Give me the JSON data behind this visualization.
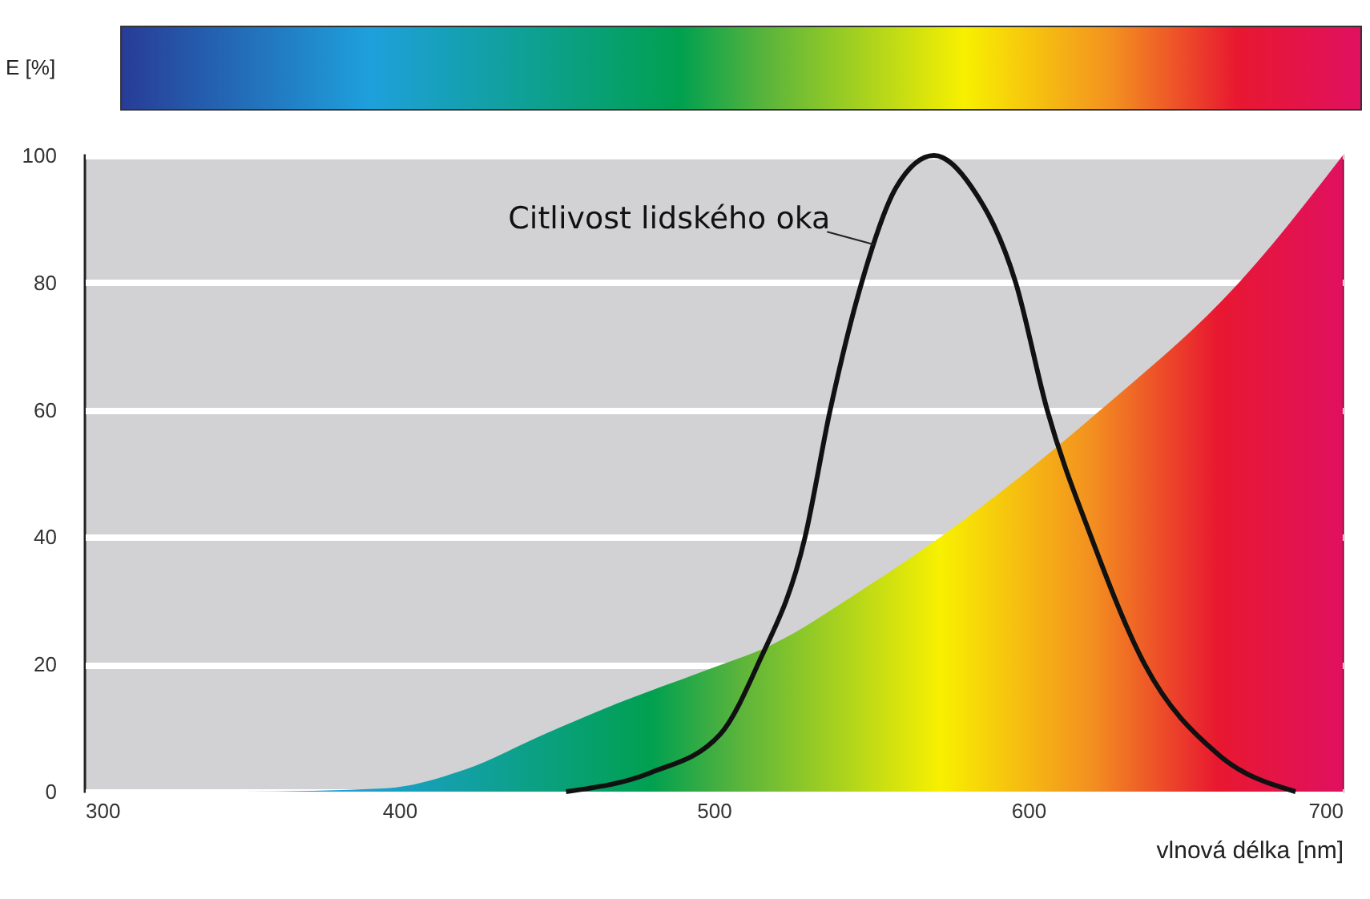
{
  "chart_data": {
    "type": "area",
    "xlabel": "vlnová délka [nm]",
    "ylabel": "E [%]",
    "series": [
      {
        "x": [
          300,
          350,
          395,
          421,
          446,
          470,
          497,
          518,
          548,
          572,
          623,
          667,
          700
        ],
        "values": [
          0,
          0,
          0.5,
          3.5,
          9,
          14,
          19,
          23,
          32,
          40,
          60,
          80,
          100
        ]
      },
      {
        "type": "line",
        "color": "#111111",
        "x": [
          453,
          480,
          502,
          514,
          529,
          537,
          547,
          558,
          570,
          582,
          596,
          606,
          620,
          637,
          660,
          685
        ],
        "values": [
          0,
          3,
          9,
          20,
          40,
          60,
          80,
          95,
          100,
          95,
          80,
          60,
          40,
          20,
          6,
          0
        ]
      }
    ],
    "annotations": [
      {
        "text": "Citlivost lidského oka",
        "x": 551,
        "y": 86
      }
    ],
    "xlim": [
      300,
      700
    ],
    "xticks": [
      300,
      400,
      500,
      600,
      700
    ],
    "ylim": [
      0,
      100
    ],
    "yticks": [
      0,
      20,
      40,
      60,
      80,
      100
    ],
    "grid": "y",
    "marker": "none",
    "line_style": "solid"
  }
}
